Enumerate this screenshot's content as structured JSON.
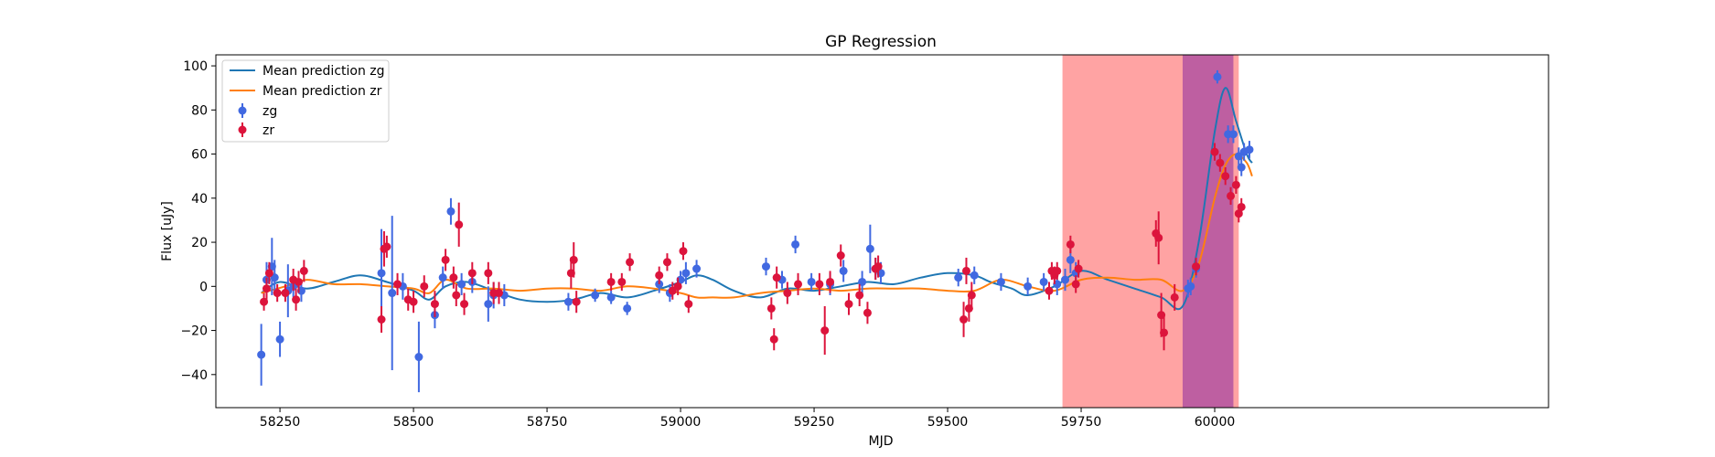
{
  "chart_data": {
    "type": "scatter",
    "title": "GP Regression",
    "xlabel": "MJD",
    "ylabel": "Flux [uJy]",
    "xlim": [
      58130,
      60625
    ],
    "ylim": [
      -55,
      105
    ],
    "xticks": [
      58250,
      58500,
      58750,
      59000,
      59250,
      59500,
      59750,
      60000
    ],
    "yticks": [
      -40,
      -20,
      0,
      20,
      40,
      60,
      80,
      100
    ],
    "legend_position": "upper-left",
    "legend": [
      "Mean prediction zg",
      "Mean prediction zr",
      "zg",
      "zr"
    ],
    "colors": {
      "zg": "#4169e1",
      "zr": "#dc143c",
      "mean_zg": "#1f77b4",
      "mean_zr": "#ff7f0e",
      "span_red": "#ff6666",
      "span_purple": "#9b3aa0"
    },
    "spans": [
      {
        "x0": 59715,
        "x1": 60045,
        "color": "#ff6666",
        "alpha": 0.6
      },
      {
        "x0": 59940,
        "x1": 60035,
        "color": "#9b3aa0",
        "alpha": 0.65
      }
    ],
    "series": [
      {
        "name": "Mean prediction zg",
        "kind": "line",
        "x": [
          58215,
          58250,
          58300,
          58350,
          58400,
          58450,
          58500,
          58530,
          58560,
          58600,
          58650,
          58700,
          58750,
          58800,
          58850,
          58900,
          58950,
          59000,
          59030,
          59060,
          59100,
          59150,
          59200,
          59250,
          59300,
          59350,
          59400,
          59450,
          59500,
          59550,
          59580,
          59620,
          59650,
          59700,
          59750,
          59800,
          59850,
          59900,
          59940,
          59970,
          60000,
          60020,
          60040,
          60060,
          60070
        ],
        "y": [
          -3,
          2,
          -1,
          2,
          5,
          2,
          -2,
          -6,
          0,
          2,
          -2,
          -6,
          -7,
          -6,
          -3,
          -5,
          -2,
          2,
          5,
          3,
          -2,
          -5,
          -1,
          -2,
          0,
          2,
          1,
          4,
          6,
          5,
          2,
          -1,
          -4,
          0,
          7,
          3,
          -1,
          -5,
          -9,
          20,
          70,
          90,
          75,
          60,
          56
        ]
      },
      {
        "name": "Mean prediction zr",
        "kind": "line",
        "x": [
          58215,
          58260,
          58300,
          58350,
          58400,
          58450,
          58500,
          58530,
          58560,
          58600,
          58650,
          58700,
          58750,
          58800,
          58850,
          58900,
          58950,
          59000,
          59030,
          59060,
          59100,
          59150,
          59200,
          59250,
          59300,
          59350,
          59400,
          59450,
          59500,
          59550,
          59600,
          59650,
          59700,
          59750,
          59800,
          59850,
          59900,
          59940,
          59970,
          60000,
          60020,
          60040,
          60060,
          60070
        ],
        "y": [
          -3,
          0,
          3,
          1,
          1,
          0,
          -1,
          -3,
          3,
          -1,
          -1,
          -2,
          -1,
          -1,
          -2,
          0,
          -1,
          -3,
          -5,
          -5,
          -5,
          -3,
          -2,
          -1,
          -2,
          -1,
          -1,
          -1,
          -2,
          -2,
          3,
          0,
          -2,
          3,
          4,
          3,
          3,
          -2,
          10,
          40,
          55,
          60,
          56,
          50
        ]
      },
      {
        "name": "zg",
        "kind": "errorbar",
        "x": [
          58215,
          58225,
          58235,
          58240,
          58250,
          58265,
          58275,
          58290,
          58440,
          58460,
          58480,
          58510,
          58540,
          58555,
          58570,
          58590,
          58610,
          58640,
          58650,
          58670,
          58790,
          58840,
          58870,
          58900,
          58960,
          58980,
          59000,
          59010,
          59030,
          59160,
          59190,
          59215,
          59245,
          59280,
          59305,
          59340,
          59355,
          59365,
          59375,
          59520,
          59550,
          59600,
          59650,
          59680,
          59705,
          59720,
          59730,
          59740,
          59950,
          59955,
          59965,
          60005,
          60025,
          60035,
          60045,
          60050,
          60055,
          60065
        ],
        "y": [
          -31,
          3,
          9,
          4,
          -24,
          -2,
          0,
          -2,
          6,
          -3,
          0,
          -32,
          -13,
          4,
          34,
          1,
          2,
          -8,
          -4,
          -4,
          -7,
          -4,
          -5,
          -10,
          1,
          -3,
          3,
          6,
          8,
          9,
          3,
          19,
          2,
          1,
          7,
          2,
          17,
          8,
          6,
          4,
          5,
          2,
          0,
          2,
          1,
          3,
          12,
          6,
          -1,
          0,
          8,
          95,
          69,
          69,
          59,
          54,
          61,
          62
        ],
        "yerr": [
          14,
          8,
          13,
          8,
          8,
          12,
          5,
          5,
          20,
          35,
          6,
          16,
          6,
          5,
          6,
          5,
          5,
          8,
          6,
          5,
          4,
          3,
          3,
          3,
          4,
          4,
          4,
          5,
          4,
          4,
          4,
          4,
          4,
          5,
          5,
          5,
          11,
          5,
          5,
          4,
          4,
          4,
          4,
          4,
          5,
          5,
          6,
          5,
          4,
          4,
          4,
          3,
          4,
          4,
          4,
          4,
          4,
          4
        ]
      },
      {
        "name": "zr",
        "kind": "errorbar",
        "x": [
          58220,
          58225,
          58230,
          58245,
          58260,
          58275,
          58280,
          58285,
          58295,
          58440,
          58445,
          58450,
          58470,
          58490,
          58500,
          58520,
          58540,
          58560,
          58575,
          58580,
          58585,
          58595,
          58610,
          58640,
          58650,
          58660,
          58795,
          58800,
          58805,
          58870,
          58890,
          58905,
          58960,
          58975,
          58985,
          58995,
          59005,
          59015,
          59170,
          59175,
          59180,
          59200,
          59220,
          59260,
          59270,
          59280,
          59300,
          59315,
          59335,
          59350,
          59365,
          59370,
          59530,
          59535,
          59540,
          59545,
          59690,
          59695,
          59700,
          59705,
          59730,
          59740,
          59745,
          59890,
          59895,
          59900,
          59905,
          59925,
          59965,
          60000,
          60010,
          60020,
          60030,
          60040,
          60045,
          60050
        ],
        "y": [
          -7,
          -1,
          6,
          -3,
          -3,
          3,
          -6,
          2,
          7,
          -15,
          17,
          18,
          1,
          -6,
          -7,
          0,
          -8,
          12,
          4,
          -4,
          28,
          -8,
          6,
          6,
          -3,
          -3,
          6,
          12,
          -7,
          2,
          2,
          11,
          5,
          11,
          -2,
          0,
          16,
          -8,
          -10,
          -24,
          4,
          -3,
          1,
          1,
          -20,
          2,
          14,
          -8,
          -4,
          -12,
          8,
          9,
          -15,
          7,
          -10,
          -4,
          -2,
          7,
          5,
          7,
          19,
          1,
          8,
          24,
          22,
          -13,
          -21,
          -5,
          9,
          61,
          56,
          50,
          41,
          46,
          33,
          36
        ],
        "yerr": [
          4,
          5,
          5,
          4,
          4,
          5,
          5,
          5,
          5,
          6,
          8,
          5,
          5,
          5,
          5,
          5,
          6,
          5,
          5,
          5,
          10,
          5,
          5,
          5,
          5,
          5,
          7,
          8,
          5,
          4,
          4,
          4,
          4,
          4,
          4,
          4,
          4,
          4,
          5,
          5,
          5,
          5,
          5,
          5,
          11,
          5,
          5,
          5,
          5,
          5,
          5,
          5,
          8,
          6,
          6,
          6,
          4,
          4,
          4,
          4,
          4,
          4,
          4,
          6,
          12,
          10,
          8,
          6,
          4,
          4,
          4,
          4,
          4,
          4,
          4,
          4
        ]
      }
    ]
  }
}
